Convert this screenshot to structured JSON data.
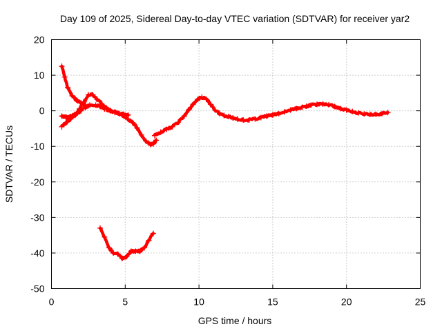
{
  "chart_data": {
    "type": "scatter",
    "title": "Day 109 of 2025, Sidereal Day-to-day VTEC variation (SDTVAR) for receiver yar2",
    "xlabel": "GPS time / hours",
    "ylabel": "SDTVAR / TECUs",
    "xlim": [
      0,
      25
    ],
    "ylim": [
      -50,
      20
    ],
    "xticks": [
      0,
      5,
      10,
      15,
      20,
      25
    ],
    "yticks": [
      -50,
      -40,
      -30,
      -20,
      -10,
      0,
      10,
      20
    ],
    "grid": true,
    "color": "#ff0000",
    "series": [
      {
        "name": "arc-1",
        "x": [
          0.7,
          0.9,
          1.1,
          1.4,
          1.7,
          2.0,
          2.3
        ],
        "y": [
          12.5,
          9.5,
          6.5,
          4.2,
          3.0,
          2.2,
          1.6
        ]
      },
      {
        "name": "arc-2",
        "x": [
          0.7,
          1.0,
          1.3,
          1.6,
          2.0,
          2.3,
          2.6,
          3.0,
          3.3,
          3.6,
          4.0,
          4.3,
          4.6,
          4.9,
          5.2,
          5.5,
          5.8,
          6.1,
          6.4,
          6.7,
          6.9,
          7.1
        ],
        "y": [
          -4.5,
          -3.3,
          -2.3,
          -1.3,
          0.0,
          0.9,
          1.6,
          1.6,
          1.2,
          0.5,
          0.0,
          -0.3,
          -0.8,
          -1.5,
          -2.3,
          -3.3,
          -4.8,
          -6.8,
          -8.5,
          -9.5,
          -9.3,
          -8.3
        ]
      },
      {
        "name": "arc-3",
        "x": [
          0.7,
          1.0,
          1.3,
          1.6,
          1.9,
          2.2,
          2.5,
          2.8,
          3.1,
          3.4,
          3.7,
          4.0,
          4.3,
          4.6,
          4.9,
          5.2
        ],
        "y": [
          -1.5,
          -1.8,
          -1.6,
          -1.0,
          0.5,
          2.5,
          4.5,
          4.5,
          3.2,
          2.0,
          0.8,
          0.0,
          -0.5,
          -0.8,
          -1.0,
          -1.2
        ]
      },
      {
        "name": "arc-4",
        "x": [
          7.0,
          7.4,
          7.8,
          8.2,
          8.6,
          9.0,
          9.3,
          9.6,
          9.9,
          10.2,
          10.5,
          10.8,
          11.1,
          11.4,
          11.7,
          12.0,
          12.3,
          12.6,
          13.0,
          13.4,
          13.8,
          14.2,
          14.6,
          15.0,
          15.4,
          15.8,
          16.2,
          16.6,
          17.0,
          17.3,
          17.6,
          18.0,
          18.4,
          18.8,
          19.2,
          19.6,
          20.0,
          20.4,
          20.8,
          21.2,
          21.6,
          22.0,
          22.4,
          22.8
        ],
        "y": [
          -7.0,
          -6.0,
          -5.2,
          -4.5,
          -3.2,
          -1.5,
          0.2,
          1.8,
          3.2,
          3.8,
          3.2,
          1.8,
          0.2,
          -0.8,
          -1.3,
          -1.6,
          -2.0,
          -2.3,
          -2.6,
          -2.6,
          -2.3,
          -1.9,
          -1.5,
          -1.2,
          -0.8,
          -0.3,
          0.2,
          0.6,
          1.0,
          1.3,
          1.6,
          1.8,
          1.9,
          1.7,
          1.2,
          0.6,
          0.2,
          -0.2,
          -0.6,
          -0.9,
          -1.0,
          -1.0,
          -0.8,
          -0.5
        ]
      },
      {
        "name": "arc-5",
        "x": [
          3.3,
          3.6,
          3.9,
          4.2,
          4.5,
          4.8,
          5.1,
          5.4,
          5.7,
          6.0,
          6.3,
          6.6,
          6.9
        ],
        "y": [
          -33.0,
          -35.5,
          -38.5,
          -40.0,
          -40.3,
          -41.5,
          -41.0,
          -39.5,
          -39.5,
          -39.5,
          -38.5,
          -36.5,
          -34.5
        ]
      }
    ]
  }
}
